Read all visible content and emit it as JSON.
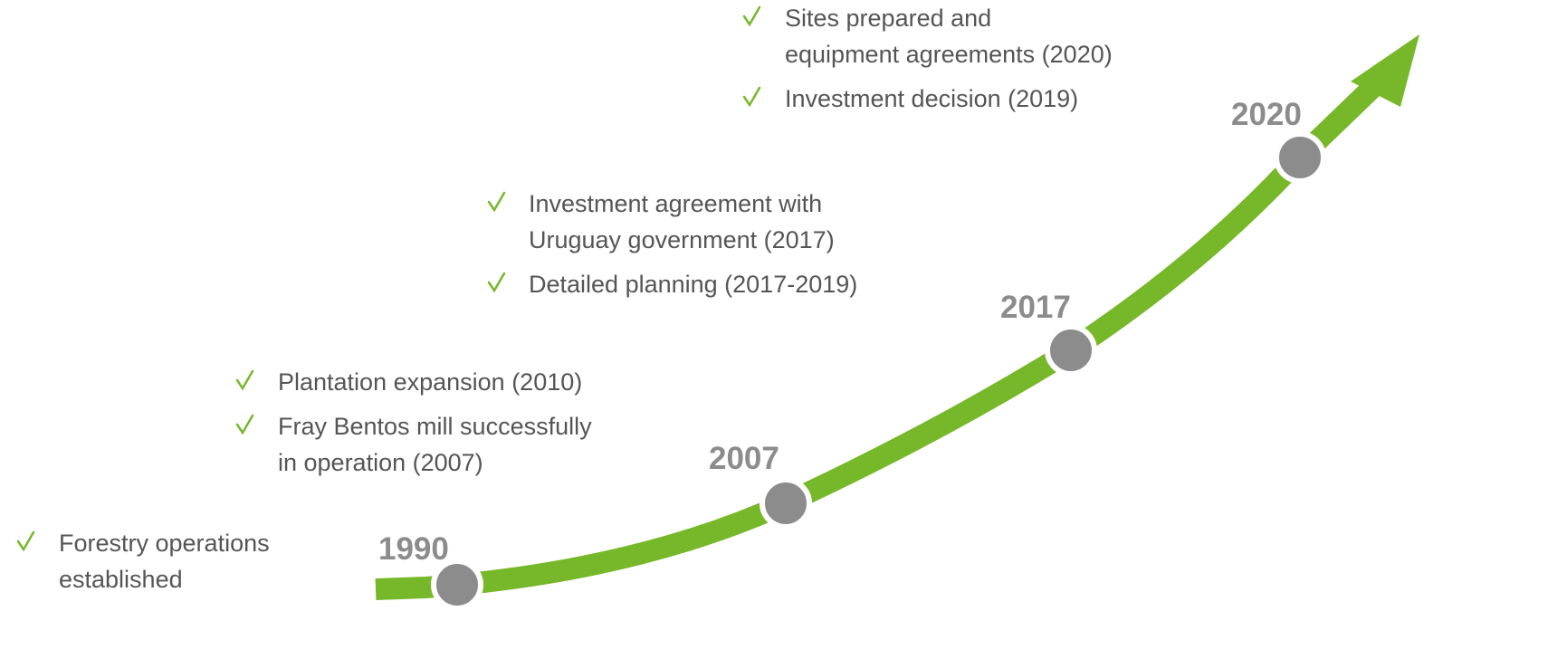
{
  "milestones": [
    {
      "year": "1990",
      "items": [
        {
          "lines": [
            "Forestry operations",
            "established"
          ]
        }
      ]
    },
    {
      "year": "2007",
      "items": [
        {
          "lines": [
            "Plantation expansion (2010)"
          ]
        },
        {
          "lines": [
            "Fray Bentos mill successfully",
            "in operation (2007)"
          ]
        }
      ]
    },
    {
      "year": "2017",
      "items": [
        {
          "lines": [
            "Investment agreement with",
            "Uruguay government (2017)"
          ]
        },
        {
          "lines": [
            "Detailed planning (2017-2019)"
          ]
        }
      ]
    },
    {
      "year": "2020",
      "items": [
        {
          "lines": [
            "Sites prepared and",
            "equipment agreements (2020)"
          ]
        },
        {
          "lines": [
            "Investment decision (2019)"
          ]
        }
      ]
    }
  ]
}
